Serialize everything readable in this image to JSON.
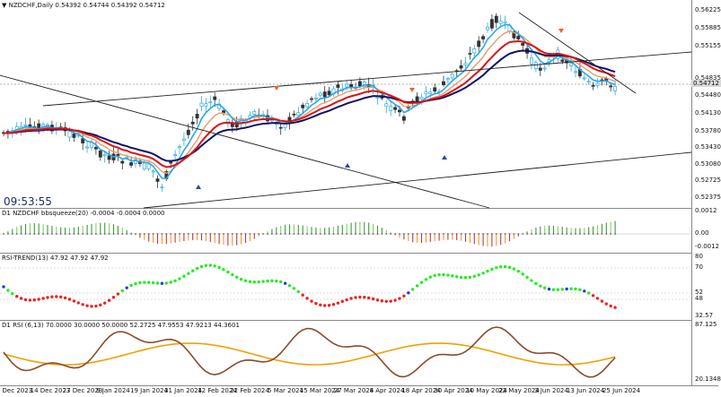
{
  "chart_header": {
    "symbol_info": "NZDCHF,Daily  0.54392 0.54744 0.54392 0.54712",
    "collapse_icon": "triangle-down-icon"
  },
  "clock": "09:53:55",
  "price_axis": {
    "labels": [
      "0.56225",
      "0.55885",
      "0.55155",
      "0.54835",
      "0.54712",
      "0.54480",
      "0.54130",
      "0.53780",
      "0.53430",
      "0.53080",
      "0.52725",
      "0.52375"
    ],
    "current": "0.54712"
  },
  "indicators": {
    "squeeze": {
      "label": "D1 NZDCHF bbsqueeze(20) -0.0004 -0.0004 0.0000",
      "axis": [
        "0.0012",
        "0.00",
        "-0.0012"
      ]
    },
    "rsi_trend": {
      "label": "RSI-TREND(13) 47.92 47.92 47.92",
      "axis": [
        "80",
        "70",
        "52",
        "48",
        "32.57"
      ]
    },
    "rsi": {
      "label": "D1 RSI  (6,13) 70.0000 30.0000 50.0000 52.2725 47.9553 47.9213 44.3601",
      "axis": [
        "87.125",
        "20.1348"
      ]
    }
  },
  "date_axis": [
    "4 Dec 2023",
    "14 Dec 2023",
    "27 Dec 2023",
    "9 Jan 2024",
    "19 Jan 2024",
    "31 Jan 2024",
    "12 Feb 2024",
    "22 Feb 2024",
    "5 Mar 2024",
    "15 Mar 2024",
    "27 Mar 2024",
    "8 Apr 2024",
    "18 Apr 2024",
    "30 Apr 2024",
    "10 May 2024",
    "22 May 2024",
    "3 Jun 2024",
    "13 Jun 2024",
    "25 Jun 2024"
  ],
  "colors": {
    "bull_candle": "#33aadd",
    "bear_candle": "#333333",
    "ma_fast": "#22aaee",
    "ma_mid": "#ee9966",
    "ma_red": "#dd1111",
    "ma_navy": "#111166",
    "rsi_brown": "#8b4a2b",
    "rsi_orange": "#f0a000"
  }
}
